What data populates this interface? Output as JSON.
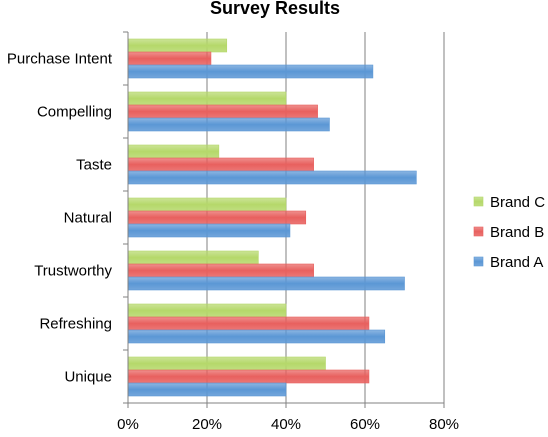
{
  "chart_data": {
    "type": "bar",
    "orientation": "horizontal",
    "title": "Survey Results",
    "categories": [
      "Purchase Intent",
      "Compelling",
      "Taste",
      "Natural",
      "Trustworthy",
      "Refreshing",
      "Unique"
    ],
    "series": [
      {
        "name": "Brand C",
        "color": "#b5d86a",
        "values": [
          25,
          40,
          23,
          40,
          33,
          40,
          50
        ]
      },
      {
        "name": "Brand B",
        "color": "#e8605e",
        "values": [
          21,
          48,
          47,
          45,
          47,
          61,
          61
        ]
      },
      {
        "name": "Brand A",
        "color": "#5b97d5",
        "values": [
          62,
          51,
          73,
          41,
          70,
          65,
          40
        ]
      }
    ],
    "x_ticks": [
      "0%",
      "20%",
      "40%",
      "60%",
      "80%"
    ],
    "xlim": [
      0,
      80
    ],
    "grid": true,
    "legend_position": "right"
  }
}
